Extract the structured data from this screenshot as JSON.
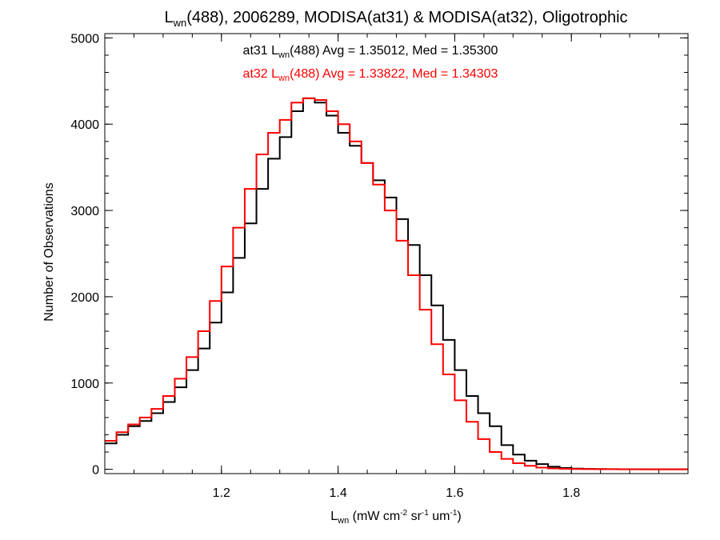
{
  "chart_data": {
    "type": "line",
    "title": {
      "prefix": "L",
      "prefix_sub": "wn",
      "rest": "(488), 2006289, MODISA(at31) & MODISA(at32), Oligotrophic"
    },
    "xlabel": {
      "base": "L",
      "base_sub": "wn",
      "open": " (mW cm",
      "sup1": "-2",
      "mid1": " sr",
      "sup2": "-1",
      "mid2": " um",
      "sup3": "-1",
      "close": ")"
    },
    "ylabel": "Number of Observations",
    "xlim": [
      1.0,
      2.0
    ],
    "ylim": [
      -50,
      5050
    ],
    "xticks": [
      1.2,
      1.4,
      1.6,
      1.8
    ],
    "xtick_labels": [
      "1.2",
      "1.4",
      "1.6",
      "1.8"
    ],
    "yticks": [
      0,
      1000,
      2000,
      3000,
      4000,
      5000
    ],
    "ytick_labels": [
      "0",
      "1000",
      "2000",
      "3000",
      "4000",
      "5000"
    ],
    "grid": false,
    "legend": "top-center",
    "x": [
      1.0,
      1.02,
      1.04,
      1.06,
      1.08,
      1.1,
      1.12,
      1.14,
      1.16,
      1.18,
      1.2,
      1.22,
      1.24,
      1.26,
      1.28,
      1.3,
      1.32,
      1.34,
      1.36,
      1.38,
      1.4,
      1.42,
      1.44,
      1.46,
      1.48,
      1.5,
      1.52,
      1.54,
      1.56,
      1.58,
      1.6,
      1.62,
      1.64,
      1.66,
      1.68,
      1.7,
      1.72,
      1.74,
      1.76,
      1.78,
      1.8,
      1.82,
      1.84,
      1.86,
      1.88,
      1.9,
      1.92,
      1.94,
      1.96,
      1.98
    ],
    "series": [
      {
        "name_prefix": "at31 L",
        "name_sub": "wn",
        "name_rest": "(488) Avg = 1.35012, Med = 1.35300",
        "color": "#000000",
        "values": [
          300,
          400,
          500,
          560,
          650,
          780,
          950,
          1150,
          1400,
          1700,
          2050,
          2450,
          2850,
          3250,
          3600,
          3850,
          4150,
          4300,
          4250,
          4100,
          3900,
          3750,
          3550,
          3350,
          3150,
          2900,
          2600,
          2250,
          1900,
          1500,
          1150,
          850,
          650,
          500,
          280,
          170,
          100,
          60,
          30,
          15,
          8,
          5,
          3,
          2,
          1,
          1,
          0,
          0,
          0,
          0
        ]
      },
      {
        "name_prefix": "at32 L",
        "name_sub": "wn",
        "name_rest": "(488) Avg = 1.33822, Med = 1.34303",
        "color": "#ff0000",
        "values": [
          330,
          430,
          520,
          600,
          700,
          850,
          1050,
          1300,
          1600,
          1950,
          2350,
          2800,
          3250,
          3650,
          3900,
          4050,
          4250,
          4300,
          4280,
          4150,
          4000,
          3800,
          3550,
          3300,
          3000,
          2650,
          2250,
          1850,
          1450,
          1100,
          800,
          550,
          350,
          200,
          120,
          70,
          40,
          20,
          10,
          6,
          3,
          2,
          1,
          1,
          0,
          0,
          0,
          0,
          0,
          0
        ]
      }
    ]
  }
}
